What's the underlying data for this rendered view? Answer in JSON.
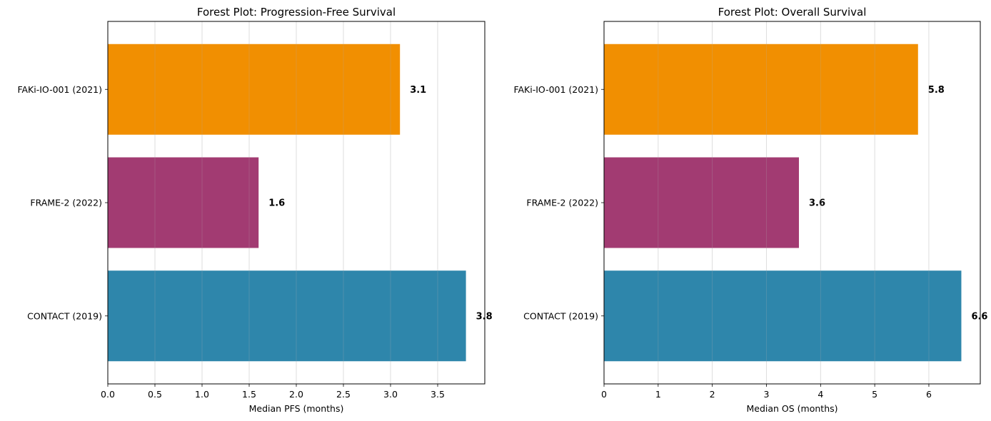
{
  "chart_data": [
    {
      "type": "bar",
      "orientation": "horizontal",
      "title": "Forest Plot: Progression-Free Survival",
      "xlabel": "Median PFS (months)",
      "ylabel": "",
      "categories": [
        "CONTACT (2019)",
        "FRAME-2 (2022)",
        "FAKi-IO-001 (2021)"
      ],
      "values": [
        3.8,
        1.6,
        3.1
      ],
      "data_labels": [
        "3.8",
        "1.6",
        "3.1"
      ],
      "colors": [
        "#2e86ab",
        "#a23b72",
        "#f18f01"
      ],
      "xlim": [
        0,
        4.0
      ],
      "xticks": [
        0.0,
        0.5,
        1.0,
        1.5,
        2.0,
        2.5,
        3.0,
        3.5
      ],
      "xtick_labels": [
        "0.0",
        "0.5",
        "1.0",
        "1.5",
        "2.0",
        "2.5",
        "3.0",
        "3.5"
      ],
      "grid": "x"
    },
    {
      "type": "bar",
      "orientation": "horizontal",
      "title": "Forest Plot: Overall Survival",
      "xlabel": "Median OS (months)",
      "ylabel": "",
      "categories": [
        "CONTACT (2019)",
        "FRAME-2 (2022)",
        "FAKi-IO-001 (2021)"
      ],
      "values": [
        6.6,
        3.6,
        5.8
      ],
      "data_labels": [
        "6.6",
        "3.6",
        "5.8"
      ],
      "colors": [
        "#2e86ab",
        "#a23b72",
        "#f18f01"
      ],
      "xlim": [
        0,
        6.95
      ],
      "xticks": [
        0,
        1,
        2,
        3,
        4,
        5,
        6
      ],
      "xtick_labels": [
        "0",
        "1",
        "2",
        "3",
        "4",
        "5",
        "6"
      ],
      "grid": "x"
    }
  ]
}
